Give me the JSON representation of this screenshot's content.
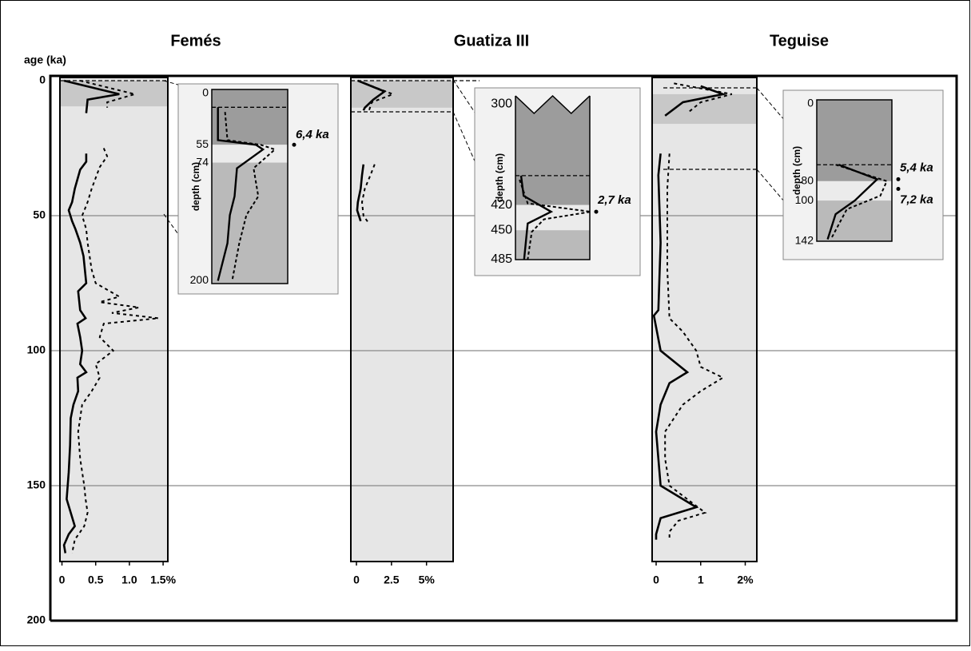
{
  "chart_data": {
    "type": "profile-panels",
    "ylabel": "age (ka)",
    "ylim": [
      0,
      200
    ],
    "yticks": [
      0,
      50,
      100,
      150,
      200
    ],
    "grid": true,
    "panels": [
      {
        "title": "Femés",
        "xlim": [
          -0.03,
          1.57
        ],
        "xticks": [
          0,
          0.5,
          {
            "value": 1,
            "label": "1.0"
          },
          {
            "value": 1.5,
            "label": "1.5%"
          }
        ],
        "highlight": [
          0,
          9.5
        ],
        "series": [
          {
            "style": "solid",
            "color": "#000000",
            "age": [
              0,
              5,
              7,
              12,
              null,
              27,
              30,
              33,
              40,
              45,
              48,
              52,
              55,
              60,
              65,
              75,
              78,
              85,
              88,
              90,
              95,
              100,
              105,
              108,
              110,
              115,
              120,
              125,
              135,
              145,
              155,
              165,
              168,
              172,
              175
            ],
            "values": [
              0.03,
              0.85,
              0.38,
              0.36,
              null,
              0.36,
              0.36,
              0.27,
              0.19,
              0.15,
              0.1,
              0.15,
              0.2,
              0.27,
              0.32,
              0.36,
              0.24,
              0.27,
              0.35,
              0.23,
              0.27,
              0.3,
              0.27,
              0.36,
              0.23,
              0.24,
              0.17,
              0.13,
              0.12,
              0.1,
              0.07,
              0.19,
              0.1,
              0.03,
              0.05
            ]
          },
          {
            "style": "dashed",
            "color": "#000000",
            "age": [
              0,
              5,
              8,
              10,
              null,
              25,
              28,
              32,
              40,
              45,
              50,
              55,
              60,
              70,
              75,
              80,
              82,
              84,
              86,
              88,
              90,
              95,
              100,
              105,
              110,
              115,
              120,
              130,
              140,
              150,
              155,
              160,
              165,
              170,
              175
            ],
            "values": [
              0.27,
              1.08,
              0.67,
              0.67,
              null,
              0.62,
              0.67,
              0.56,
              0.44,
              0.38,
              0.3,
              0.36,
              0.38,
              0.44,
              0.5,
              0.85,
              0.56,
              1.14,
              0.74,
              1.43,
              0.62,
              0.56,
              0.76,
              0.5,
              0.56,
              0.44,
              0.3,
              0.24,
              0.27,
              0.33,
              0.35,
              0.38,
              0.33,
              0.19,
              0.15
            ]
          }
        ],
        "inset": {
          "ylabel": "depth (cm)",
          "ylim": [
            -4,
            203
          ],
          "yticks": [
            0,
            55,
            74,
            200
          ],
          "dates": [
            {
              "depth": 55,
              "label": "6,4 ka"
            }
          ],
          "series": [
            {
              "style": "solid",
              "color": "#000000",
              "depth": [
                15,
                50,
                55,
                60,
                80,
                110,
                130,
                160,
                200
              ],
              "values": [
                0.1,
                0.1,
                0.9,
                1.05,
                0.5,
                0.45,
                0.35,
                0.3,
                0.1
              ]
            },
            {
              "style": "dashed",
              "color": "#000000",
              "depth": [
                20,
                50,
                55,
                60,
                80,
                110,
                130,
                160,
                200
              ],
              "values": [
                0.25,
                0.3,
                1.0,
                1.3,
                0.85,
                0.95,
                0.7,
                0.55,
                0.4
              ]
            }
          ]
        }
      },
      {
        "title": "Guatiza III",
        "xlim": [
          -0.4,
          6.9
        ],
        "xticks": [
          0,
          2.5,
          {
            "value": 5,
            "label": "5%"
          }
        ],
        "highlight": [
          0,
          10
        ],
        "series": [
          {
            "style": "solid",
            "color": "#000000",
            "age": [
              0,
              4,
              7,
              10,
              11,
              null,
              31,
              35,
              40,
              45,
              48,
              52
            ],
            "values": [
              0.1,
              2.0,
              1.2,
              0.6,
              0.5,
              null,
              0.5,
              0.4,
              0.3,
              0.1,
              0.05,
              0.3
            ]
          },
          {
            "style": "dashed",
            "color": "#000000",
            "age": [
              1,
              5,
              8,
              11,
              null,
              31,
              35,
              40,
              45,
              50,
              53
            ],
            "values": [
              0.6,
              2.6,
              1.1,
              0.9,
              null,
              1.3,
              1.0,
              0.6,
              0.4,
              0.5,
              0.9
            ]
          }
        ],
        "inset": {
          "ylabel": "depth (cm)",
          "ylim": [
            290,
            485
          ],
          "yticks": [
            300,
            420,
            450,
            485
          ],
          "dates": [
            {
              "depth": 428,
              "label": "2,7 ka"
            }
          ],
          "series": [
            {
              "style": "solid",
              "color": "#000000",
              "depth": [
                385,
                409,
                428,
                442,
                485
              ],
              "values": [
                0.15,
                0.4,
                3.1,
                0.8,
                0.45
              ]
            },
            {
              "style": "dashed",
              "color": "#000000",
              "depth": [
                390,
                418,
                428,
                437,
                452,
                485
              ],
              "values": [
                0,
                0.8,
                7.0,
                2.4,
                1.2,
                0.8
              ]
            }
          ]
        }
      },
      {
        "title": "Teguise",
        "xlim": [
          -0.09,
          2.26
        ],
        "xticks": [
          0,
          1,
          {
            "value": 2,
            "label": "2%"
          }
        ],
        "highlight": [
          5,
          16
        ],
        "series": [
          {
            "style": "solid",
            "color": "#000000",
            "age": [
              2,
              5,
              8,
              13,
              null,
              27,
              35,
              60,
              85,
              87,
              100,
              108,
              112,
              120,
              130,
              140,
              150,
              158,
              162,
              168,
              170
            ],
            "values": [
              1.0,
              1.5,
              0.6,
              0.2,
              null,
              0.1,
              0.05,
              0.1,
              0.05,
              -0.05,
              0.1,
              0.7,
              0.3,
              0.1,
              0,
              0.05,
              0.1,
              0.9,
              0.1,
              0,
              0
            ]
          },
          {
            "style": "dashed",
            "color": "#000000",
            "age": [
              1,
              5,
              8,
              12,
              null,
              27,
              40,
              70,
              88,
              93,
              100,
              106,
              110,
              115,
              120,
              130,
              140,
              150,
              155,
              160,
              163,
              167,
              170
            ],
            "values": [
              0.4,
              1.7,
              1.0,
              0.7,
              null,
              0.3,
              0.25,
              0.25,
              0.3,
              0.6,
              0.9,
              1.0,
              1.5,
              1.0,
              0.6,
              0.2,
              0.2,
              0.3,
              0.7,
              1.1,
              0.5,
              0.3,
              0.3
            ]
          }
        ],
        "inset": {
          "ylabel": "depth (cm)",
          "ylim": [
            -4,
            142
          ],
          "yticks": [
            0,
            80,
            100,
            142
          ],
          "dates": [
            {
              "depth": 78,
              "label": "5,4 ka"
            },
            {
              "depth": 88,
              "label": "7,2 ka"
            }
          ],
          "series": [
            {
              "style": "solid",
              "color": "#000000",
              "depth": [
                63,
                78,
                100,
                114,
                140
              ],
              "values": [
                0.6,
                1.8,
                1.1,
                0.5,
                0.25
              ]
            },
            {
              "style": "dashed",
              "color": "#000000",
              "depth": [
                63,
                80,
                95,
                109,
                140
              ],
              "values": [
                0.5,
                2.1,
                1.9,
                0.85,
                0.35
              ]
            }
          ]
        }
      }
    ]
  }
}
